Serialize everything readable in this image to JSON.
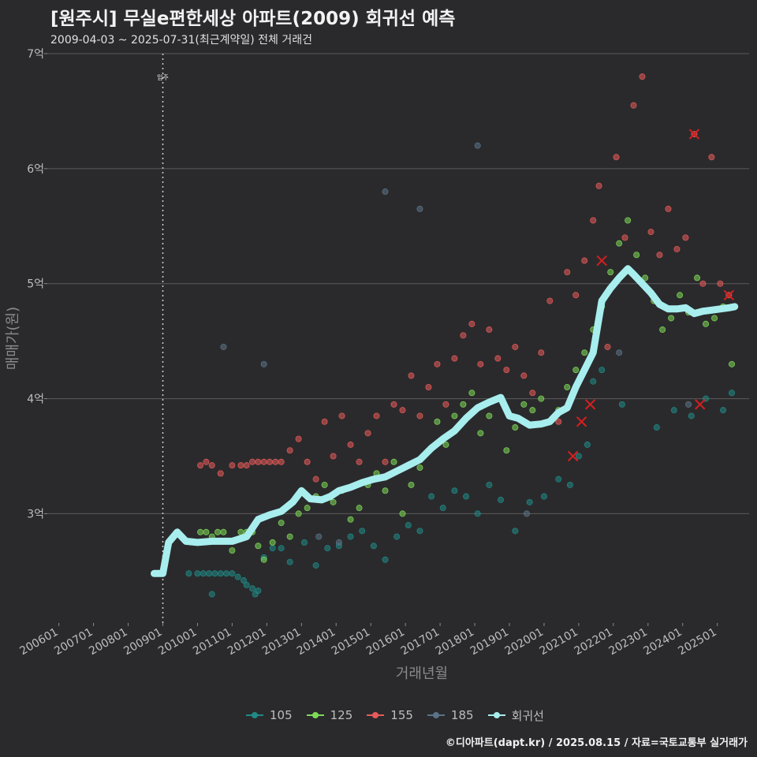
{
  "title": "[원주시] 무실e편한세상 아파트(2009) 회귀선 예측",
  "subtitle": "2009-04-03 ~ 2025-07-31(최근계약일) 전체 거래건",
  "footer": "©디아파트(dapt.kr) / 2025.08.15 / 자료=국토교통부 실거래가",
  "colors": {
    "background": "#2a2a2c",
    "grid": "#5a5a5a",
    "s105": "#1f8a86",
    "s125": "#7ed957",
    "s155": "#e85a5a",
    "s185": "#5b7388",
    "regression": "#a8eeee",
    "cancel_marker": "#d61f1f"
  },
  "chart_data": {
    "type": "scatter",
    "title": "[원주시] 무실e편한세상 아파트(2009) 회귀선 예측",
    "xlabel": "거래년월",
    "ylabel": "매매가(원)",
    "x_ticks": [
      "200601",
      "200701",
      "200801",
      "200901",
      "201001",
      "201101",
      "201201",
      "201301",
      "201401",
      "201501",
      "201601",
      "201701",
      "201801",
      "201901",
      "202001",
      "202101",
      "202201",
      "202301",
      "202401",
      "202501"
    ],
    "y_ticks": [
      "3억",
      "4억",
      "5억",
      "6억",
      "7억"
    ],
    "y_tick_values": [
      3,
      4,
      5,
      6,
      7
    ],
    "xlim": [
      "2005-09",
      "2025-12"
    ],
    "ylim": [
      2.05,
      7.0
    ],
    "unit": "억",
    "annotation": {
      "label": "입주",
      "x": "2009-01"
    },
    "legend_position": "bottom",
    "series": [
      {
        "name": "105",
        "color_key": "s105",
        "points": [
          [
            "2009-10",
            2.48
          ],
          [
            "2010-01",
            2.48
          ],
          [
            "2010-03",
            2.48
          ],
          [
            "2010-05",
            2.48
          ],
          [
            "2010-07",
            2.48
          ],
          [
            "2010-09",
            2.48
          ],
          [
            "2010-11",
            2.48
          ],
          [
            "2011-01",
            2.48
          ],
          [
            "2011-03",
            2.45
          ],
          [
            "2011-05",
            2.42
          ],
          [
            "2011-06",
            2.38
          ],
          [
            "2011-08",
            2.35
          ],
          [
            "2011-09",
            2.3
          ],
          [
            "2011-10",
            2.33
          ],
          [
            "2010-06",
            2.3
          ],
          [
            "2011-12",
            2.62
          ],
          [
            "2012-03",
            2.7
          ],
          [
            "2012-06",
            2.7
          ],
          [
            "2012-09",
            2.58
          ],
          [
            "2013-02",
            2.75
          ],
          [
            "2013-06",
            2.55
          ],
          [
            "2013-10",
            2.7
          ],
          [
            "2014-02",
            2.72
          ],
          [
            "2014-06",
            2.8
          ],
          [
            "2014-10",
            2.85
          ],
          [
            "2015-02",
            2.72
          ],
          [
            "2015-06",
            2.6
          ],
          [
            "2015-10",
            2.8
          ],
          [
            "2016-02",
            2.9
          ],
          [
            "2016-06",
            2.85
          ],
          [
            "2016-10",
            3.15
          ],
          [
            "2017-02",
            3.05
          ],
          [
            "2017-06",
            3.2
          ],
          [
            "2017-10",
            3.15
          ],
          [
            "2018-02",
            3.0
          ],
          [
            "2018-06",
            3.25
          ],
          [
            "2018-10",
            3.12
          ],
          [
            "2019-03",
            2.85
          ],
          [
            "2019-08",
            3.1
          ],
          [
            "2020-01",
            3.15
          ],
          [
            "2020-06",
            3.3
          ],
          [
            "2020-10",
            3.25
          ],
          [
            "2021-01",
            3.5
          ],
          [
            "2021-04",
            3.6
          ],
          [
            "2021-06",
            4.15
          ],
          [
            "2021-09",
            4.25
          ],
          [
            "2022-04",
            3.95
          ],
          [
            "2023-04",
            3.75
          ],
          [
            "2023-10",
            3.9
          ],
          [
            "2024-04",
            3.85
          ],
          [
            "2024-09",
            4.0
          ],
          [
            "2025-03",
            3.9
          ],
          [
            "2025-06",
            4.05
          ]
        ]
      },
      {
        "name": "125",
        "color_key": "s125",
        "points": [
          [
            "2010-02",
            2.84
          ],
          [
            "2010-04",
            2.84
          ],
          [
            "2010-06",
            2.8
          ],
          [
            "2010-08",
            2.84
          ],
          [
            "2010-10",
            2.84
          ],
          [
            "2011-01",
            2.68
          ],
          [
            "2011-04",
            2.84
          ],
          [
            "2011-06",
            2.84
          ],
          [
            "2011-08",
            2.84
          ],
          [
            "2011-10",
            2.72
          ],
          [
            "2011-12",
            2.6
          ],
          [
            "2012-03",
            2.75
          ],
          [
            "2012-06",
            2.92
          ],
          [
            "2012-09",
            2.8
          ],
          [
            "2012-12",
            3.0
          ],
          [
            "2013-03",
            3.05
          ],
          [
            "2013-06",
            3.15
          ],
          [
            "2013-09",
            3.25
          ],
          [
            "2013-12",
            3.1
          ],
          [
            "2014-03",
            3.2
          ],
          [
            "2014-06",
            2.95
          ],
          [
            "2014-09",
            3.05
          ],
          [
            "2014-12",
            3.25
          ],
          [
            "2015-03",
            3.35
          ],
          [
            "2015-06",
            3.2
          ],
          [
            "2015-09",
            3.45
          ],
          [
            "2015-12",
            3.0
          ],
          [
            "2016-03",
            3.25
          ],
          [
            "2016-06",
            3.4
          ],
          [
            "2016-09",
            3.55
          ],
          [
            "2016-12",
            3.8
          ],
          [
            "2017-03",
            3.6
          ],
          [
            "2017-06",
            3.85
          ],
          [
            "2017-09",
            3.95
          ],
          [
            "2017-12",
            4.05
          ],
          [
            "2018-03",
            3.7
          ],
          [
            "2018-06",
            3.85
          ],
          [
            "2018-09",
            4.0
          ],
          [
            "2018-12",
            3.55
          ],
          [
            "2019-03",
            3.75
          ],
          [
            "2019-06",
            3.95
          ],
          [
            "2019-09",
            3.9
          ],
          [
            "2019-12",
            4.0
          ],
          [
            "2020-03",
            3.8
          ],
          [
            "2020-06",
            3.9
          ],
          [
            "2020-09",
            4.1
          ],
          [
            "2020-12",
            4.25
          ],
          [
            "2021-03",
            4.4
          ],
          [
            "2021-06",
            4.6
          ],
          [
            "2021-09",
            4.8
          ],
          [
            "2021-12",
            5.1
          ],
          [
            "2022-03",
            5.35
          ],
          [
            "2022-06",
            5.55
          ],
          [
            "2022-09",
            5.25
          ],
          [
            "2022-12",
            5.05
          ],
          [
            "2023-03",
            4.85
          ],
          [
            "2023-06",
            4.6
          ],
          [
            "2023-09",
            4.7
          ],
          [
            "2023-12",
            4.9
          ],
          [
            "2024-03",
            4.75
          ],
          [
            "2024-06",
            5.05
          ],
          [
            "2024-09",
            4.65
          ],
          [
            "2024-12",
            4.7
          ],
          [
            "2025-03",
            4.8
          ],
          [
            "2025-06",
            4.3
          ]
        ]
      },
      {
        "name": "155",
        "color_key": "s155",
        "points": [
          [
            "2010-02",
            3.42
          ],
          [
            "2010-04",
            3.45
          ],
          [
            "2010-06",
            3.42
          ],
          [
            "2010-09",
            3.35
          ],
          [
            "2011-01",
            3.42
          ],
          [
            "2011-04",
            3.42
          ],
          [
            "2011-06",
            3.42
          ],
          [
            "2011-08",
            3.45
          ],
          [
            "2011-10",
            3.45
          ],
          [
            "2011-12",
            3.45
          ],
          [
            "2012-02",
            3.45
          ],
          [
            "2012-04",
            3.45
          ],
          [
            "2012-06",
            3.45
          ],
          [
            "2012-09",
            3.55
          ],
          [
            "2012-12",
            3.65
          ],
          [
            "2013-03",
            3.45
          ],
          [
            "2013-06",
            3.3
          ],
          [
            "2013-09",
            3.8
          ],
          [
            "2013-12",
            3.5
          ],
          [
            "2014-03",
            3.85
          ],
          [
            "2014-06",
            3.6
          ],
          [
            "2014-09",
            3.45
          ],
          [
            "2014-12",
            3.7
          ],
          [
            "2015-03",
            3.85
          ],
          [
            "2015-06",
            3.45
          ],
          [
            "2015-09",
            3.95
          ],
          [
            "2015-12",
            3.9
          ],
          [
            "2016-03",
            4.2
          ],
          [
            "2016-06",
            3.85
          ],
          [
            "2016-09",
            4.1
          ],
          [
            "2016-12",
            4.3
          ],
          [
            "2017-03",
            3.95
          ],
          [
            "2017-06",
            4.35
          ],
          [
            "2017-09",
            4.55
          ],
          [
            "2017-12",
            4.65
          ],
          [
            "2018-03",
            4.3
          ],
          [
            "2018-06",
            4.6
          ],
          [
            "2018-09",
            4.35
          ],
          [
            "2018-12",
            4.25
          ],
          [
            "2019-03",
            4.45
          ],
          [
            "2019-06",
            4.2
          ],
          [
            "2019-09",
            4.05
          ],
          [
            "2019-12",
            4.4
          ],
          [
            "2020-03",
            4.85
          ],
          [
            "2020-06",
            3.8
          ],
          [
            "2020-09",
            5.1
          ],
          [
            "2020-12",
            4.9
          ],
          [
            "2021-03",
            5.2
          ],
          [
            "2021-06",
            5.55
          ],
          [
            "2021-08",
            5.85
          ],
          [
            "2021-11",
            4.45
          ],
          [
            "2022-02",
            6.1
          ],
          [
            "2022-05",
            5.4
          ],
          [
            "2022-08",
            6.55
          ],
          [
            "2022-11",
            6.8
          ],
          [
            "2023-02",
            5.45
          ],
          [
            "2023-05",
            5.25
          ],
          [
            "2023-08",
            5.65
          ],
          [
            "2023-11",
            5.3
          ],
          [
            "2024-02",
            5.4
          ],
          [
            "2024-05",
            6.3
          ],
          [
            "2024-08",
            5.0
          ],
          [
            "2024-11",
            6.1
          ],
          [
            "2025-02",
            5.0
          ],
          [
            "2025-05",
            4.9
          ]
        ]
      },
      {
        "name": "185",
        "color_key": "s185",
        "points": [
          [
            "2010-10",
            4.45
          ],
          [
            "2011-12",
            4.3
          ],
          [
            "2015-06",
            5.8
          ],
          [
            "2016-06",
            5.65
          ],
          [
            "2018-02",
            6.2
          ],
          [
            "2013-07",
            2.8
          ],
          [
            "2014-02",
            2.75
          ],
          [
            "2019-07",
            3.0
          ],
          [
            "2022-03",
            4.4
          ],
          [
            "2024-03",
            3.95
          ]
        ]
      },
      {
        "name": "회귀선",
        "color_key": "regression",
        "line": [
          [
            "2008-10",
            2.48
          ],
          [
            "2009-01",
            2.48
          ],
          [
            "2009-03",
            2.75
          ],
          [
            "2009-06",
            2.84
          ],
          [
            "2009-09",
            2.76
          ],
          [
            "2010-01",
            2.75
          ],
          [
            "2010-06",
            2.76
          ],
          [
            "2011-01",
            2.76
          ],
          [
            "2011-06",
            2.8
          ],
          [
            "2011-10",
            2.95
          ],
          [
            "2012-02",
            2.99
          ],
          [
            "2012-06",
            3.02
          ],
          [
            "2012-10",
            3.1
          ],
          [
            "2013-01",
            3.2
          ],
          [
            "2013-04",
            3.13
          ],
          [
            "2013-08",
            3.12
          ],
          [
            "2013-11",
            3.15
          ],
          [
            "2014-02",
            3.2
          ],
          [
            "2014-06",
            3.23
          ],
          [
            "2014-10",
            3.27
          ],
          [
            "2015-02",
            3.3
          ],
          [
            "2015-06",
            3.32
          ],
          [
            "2015-10",
            3.37
          ],
          [
            "2016-02",
            3.42
          ],
          [
            "2016-06",
            3.47
          ],
          [
            "2016-10",
            3.57
          ],
          [
            "2017-02",
            3.65
          ],
          [
            "2017-06",
            3.72
          ],
          [
            "2017-10",
            3.83
          ],
          [
            "2018-02",
            3.92
          ],
          [
            "2018-06",
            3.97
          ],
          [
            "2018-10",
            4.01
          ],
          [
            "2019-01",
            3.85
          ],
          [
            "2019-04",
            3.83
          ],
          [
            "2019-08",
            3.77
          ],
          [
            "2019-12",
            3.78
          ],
          [
            "2020-03",
            3.8
          ],
          [
            "2020-06",
            3.88
          ],
          [
            "2020-09",
            3.92
          ],
          [
            "2020-12",
            4.1
          ],
          [
            "2021-03",
            4.25
          ],
          [
            "2021-06",
            4.4
          ],
          [
            "2021-09",
            4.85
          ],
          [
            "2021-12",
            4.96
          ],
          [
            "2022-03",
            5.05
          ],
          [
            "2022-06",
            5.13
          ],
          [
            "2022-08",
            5.08
          ],
          [
            "2022-11",
            5.0
          ],
          [
            "2023-02",
            4.92
          ],
          [
            "2023-05",
            4.82
          ],
          [
            "2023-08",
            4.78
          ],
          [
            "2023-11",
            4.78
          ],
          [
            "2024-02",
            4.79
          ],
          [
            "2024-05",
            4.74
          ],
          [
            "2024-08",
            4.76
          ],
          [
            "2024-11",
            4.77
          ],
          [
            "2025-02",
            4.78
          ],
          [
            "2025-05",
            4.79
          ],
          [
            "2025-07",
            4.8
          ]
        ]
      }
    ],
    "cancelled": [
      [
        "2020-11",
        3.5
      ],
      [
        "2021-02",
        3.8
      ],
      [
        "2021-05",
        3.95
      ],
      [
        "2021-09",
        5.2
      ],
      [
        "2024-05",
        6.3
      ],
      [
        "2024-07",
        3.95
      ],
      [
        "2025-05",
        4.9
      ]
    ]
  }
}
